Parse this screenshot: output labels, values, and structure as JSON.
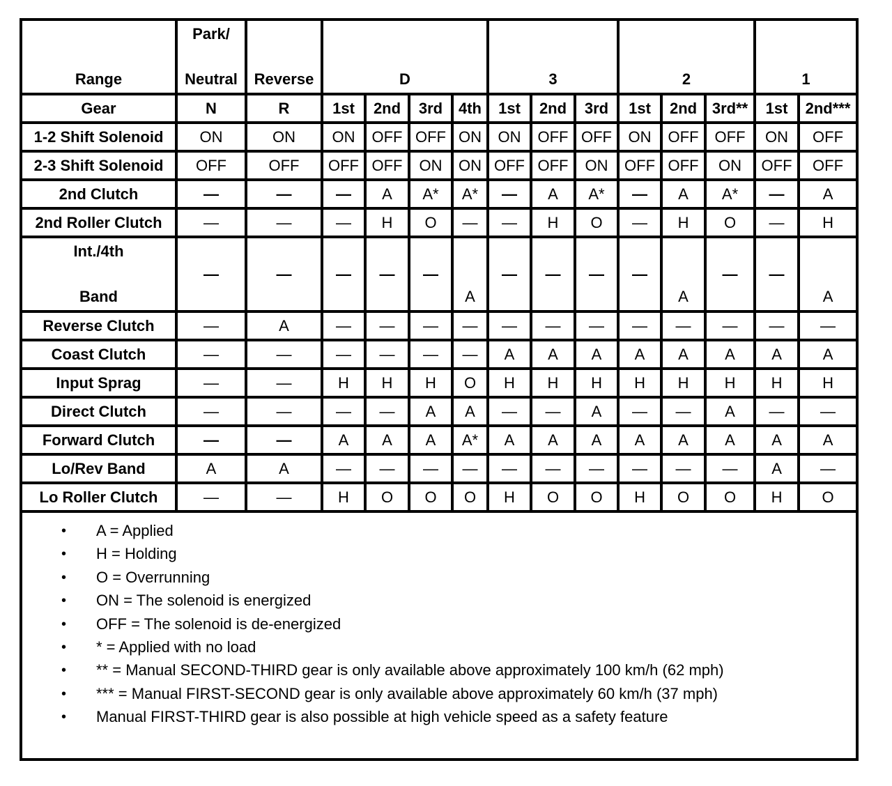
{
  "header": {
    "range_label": "Range",
    "ranges": [
      {
        "top": "Park/",
        "bottom": "Neutral",
        "span": 1
      },
      {
        "top": "",
        "bottom": "Reverse",
        "span": 1
      },
      {
        "top": "",
        "bottom": "D",
        "span": 4
      },
      {
        "top": "",
        "bottom": "3",
        "span": 3
      },
      {
        "top": "",
        "bottom": "2",
        "span": 3
      },
      {
        "top": "",
        "bottom": "1",
        "span": 2
      }
    ],
    "gear_label": "Gear",
    "gears": [
      "N",
      "R",
      "1st",
      "2nd",
      "3rd",
      "4th",
      "1st",
      "2nd",
      "3rd",
      "1st",
      "2nd",
      "3rd**",
      "1st",
      "2nd***"
    ]
  },
  "rows": [
    {
      "label": "1-2 Shift Solenoid",
      "values": [
        "ON",
        "ON",
        "ON",
        "OFF",
        "OFF",
        "ON",
        "ON",
        "OFF",
        "OFF",
        "ON",
        "OFF",
        "OFF",
        "ON",
        "OFF"
      ]
    },
    {
      "label": "2-3 Shift Solenoid",
      "values": [
        "OFF",
        "OFF",
        "OFF",
        "OFF",
        "ON",
        "ON",
        "OFF",
        "OFF",
        "ON",
        "OFF",
        "OFF",
        "ON",
        "OFF",
        "OFF"
      ]
    },
    {
      "label": "2nd Clutch",
      "bold_dash": true,
      "values": [
        "—",
        "—",
        "—",
        "A",
        "A*",
        "A*",
        "—",
        "A",
        "A*",
        "—",
        "A",
        "A*",
        "—",
        "A"
      ]
    },
    {
      "label": "2nd Roller Clutch",
      "values": [
        "—",
        "—",
        "—",
        "H",
        "O",
        "—",
        "—",
        "H",
        "O",
        "—",
        "H",
        "O",
        "—",
        "H"
      ]
    },
    {
      "label_top": "Int./4th",
      "label_bottom": "Band",
      "tall": true,
      "bold_dash": true,
      "values": [
        "—",
        "—",
        "—",
        "—",
        "—",
        "A",
        "—",
        "—",
        "—",
        "—",
        "A",
        "—",
        "—",
        "A"
      ]
    },
    {
      "label": "Reverse Clutch",
      "values": [
        "—",
        "A",
        "—",
        "—",
        "—",
        "—",
        "—",
        "—",
        "—",
        "—",
        "—",
        "—",
        "—",
        "—"
      ]
    },
    {
      "label": "Coast Clutch",
      "values": [
        "—",
        "—",
        "—",
        "—",
        "—",
        "—",
        "A",
        "A",
        "A",
        "A",
        "A",
        "A",
        "A",
        "A"
      ]
    },
    {
      "label": "Input Sprag",
      "values": [
        "—",
        "—",
        "H",
        "H",
        "H",
        "O",
        "H",
        "H",
        "H",
        "H",
        "H",
        "H",
        "H",
        "H"
      ]
    },
    {
      "label": "Direct Clutch",
      "values": [
        "—",
        "—",
        "—",
        "—",
        "A",
        "A",
        "—",
        "—",
        "A",
        "—",
        "—",
        "A",
        "—",
        "—"
      ]
    },
    {
      "label": "Forward Clutch",
      "bold_dash": true,
      "values": [
        "—",
        "—",
        "A",
        "A",
        "A",
        "A*",
        "A",
        "A",
        "A",
        "A",
        "A",
        "A",
        "A",
        "A"
      ]
    },
    {
      "label": "Lo/Rev Band",
      "values": [
        "A",
        "A",
        "—",
        "—",
        "—",
        "—",
        "—",
        "—",
        "—",
        "—",
        "—",
        "—",
        "A",
        "—"
      ]
    },
    {
      "label": "Lo Roller Clutch",
      "values": [
        "—",
        "—",
        "H",
        "O",
        "O",
        "O",
        "H",
        "O",
        "O",
        "H",
        "O",
        "O",
        "H",
        "O"
      ]
    }
  ],
  "notes": [
    "A = Applied",
    "H = Holding",
    "O = Overrunning",
    "ON = The solenoid is energized",
    "OFF = The solenoid is de-energized",
    "* = Applied with no load",
    "** = Manual SECOND-THIRD gear is only available above approximately 100 km/h (62 mph)",
    "*** = Manual FIRST-SECOND gear is only available above approximately 60 km/h (37 mph)",
    "Manual FIRST-THIRD gear is also possible at high vehicle speed as a safety feature"
  ],
  "bullet_glyph": "•"
}
